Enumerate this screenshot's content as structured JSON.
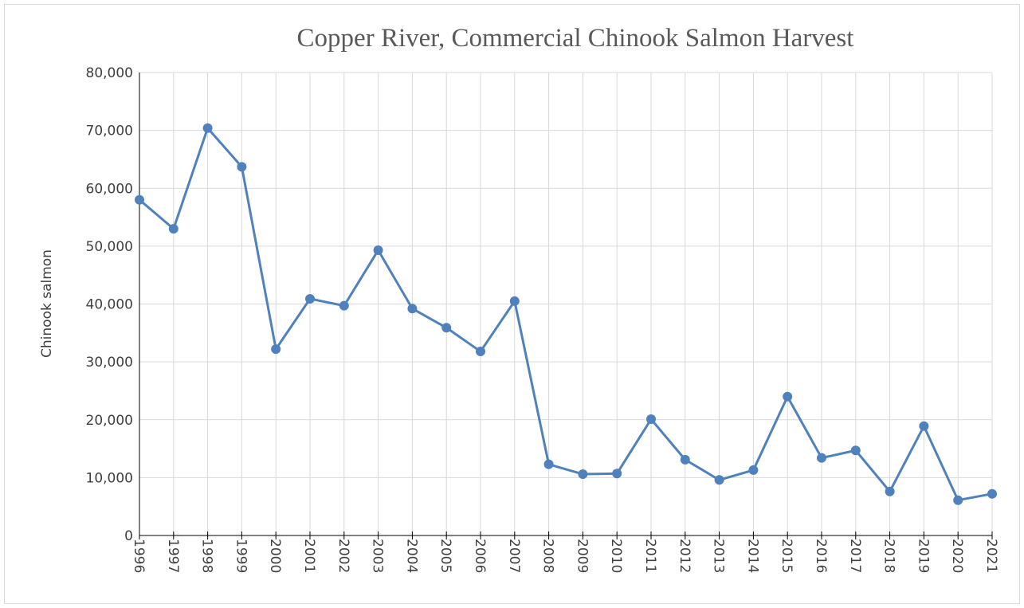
{
  "chart_data": {
    "type": "line",
    "title": "Copper River, Commercial Chinook Salmon Harvest",
    "y_label": "Chinook salmon",
    "categories": [
      "1996",
      "1997",
      "1998",
      "1999",
      "2000",
      "2001",
      "2002",
      "2003",
      "2004",
      "2005",
      "2006",
      "2007",
      "2008",
      "2009",
      "2010",
      "2011",
      "2012",
      "2013",
      "2014",
      "2015",
      "2016",
      "2017",
      "2018",
      "2019",
      "2020",
      "2021"
    ],
    "values": [
      58000,
      53000,
      70400,
      63700,
      32200,
      40900,
      39700,
      49300,
      39200,
      35900,
      31800,
      40500,
      12300,
      10600,
      10700,
      20100,
      13100,
      9600,
      11300,
      24000,
      13400,
      14700,
      7600,
      18900,
      6100,
      7200
    ],
    "color": "#4f81bd",
    "ylim": [
      0,
      80000
    ],
    "yticks": [
      0,
      {
        "value": 10000,
        "label": "10,000"
      },
      {
        "value": 20000,
        "label": "20,000"
      },
      {
        "value": 30000,
        "label": "30,000"
      },
      {
        "value": 40000,
        "label": "40,000"
      },
      {
        "value": 50000,
        "label": "50,000"
      },
      {
        "value": 60000,
        "label": "60,000"
      },
      {
        "value": 70000,
        "label": "70,000"
      },
      {
        "value": 80000,
        "label": "80,000"
      }
    ],
    "grid": true
  }
}
